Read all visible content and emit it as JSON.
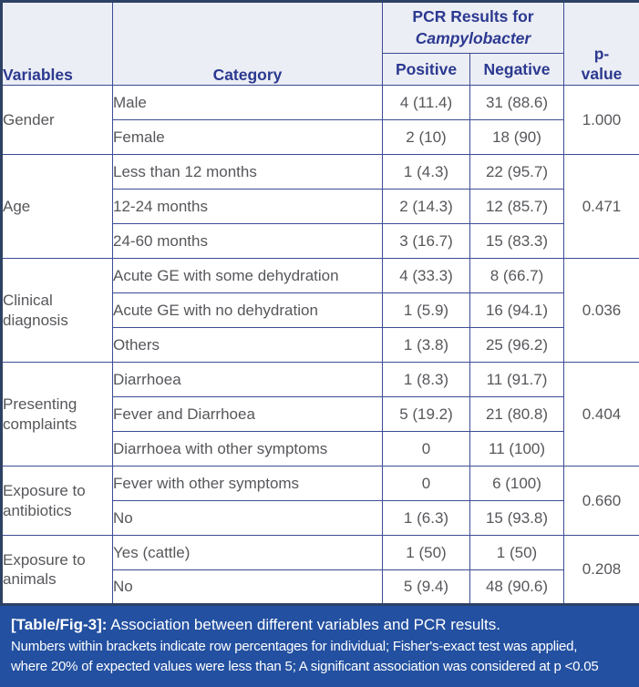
{
  "table": {
    "header": {
      "variables": "Variables",
      "category": "Category",
      "pcr_group_line1": "PCR Results for",
      "pcr_group_line2": "Campylobacter",
      "positive": "Positive",
      "negative": "Negative",
      "p_value_line1": "p-",
      "p_value_line2": "value"
    },
    "groups": [
      {
        "variable": "Gender",
        "p_value": "1.000",
        "rows": [
          {
            "category": "Male",
            "positive": "4 (11.4)",
            "negative": "31 (88.6)"
          },
          {
            "category": "Female",
            "positive": "2 (10)",
            "negative": "18 (90)"
          }
        ]
      },
      {
        "variable": "Age",
        "p_value": "0.471",
        "rows": [
          {
            "category": "Less than 12 months",
            "positive": "1 (4.3)",
            "negative": "22 (95.7)"
          },
          {
            "category": "12-24 months",
            "positive": "2 (14.3)",
            "negative": "12 (85.7)"
          },
          {
            "category": "24-60 months",
            "positive": "3 (16.7)",
            "negative": "15 (83.3)"
          }
        ]
      },
      {
        "variable": "Clinical diagnosis",
        "p_value": "0.036",
        "rows": [
          {
            "category": "Acute GE with some dehydration",
            "positive": "4 (33.3)",
            "negative": "8 (66.7)"
          },
          {
            "category": "Acute GE with no dehydration",
            "positive": "1 (5.9)",
            "negative": "16 (94.1)"
          },
          {
            "category": "Others",
            "positive": "1 (3.8)",
            "negative": "25 (96.2)"
          }
        ]
      },
      {
        "variable": "Presenting complaints",
        "p_value": "0.404",
        "rows": [
          {
            "category": "Diarrhoea",
            "positive": "1 (8.3)",
            "negative": "11 (91.7)"
          },
          {
            "category": "Fever and Diarrhoea",
            "positive": "5 (19.2)",
            "negative": "21 (80.8)"
          },
          {
            "category": "Diarrhoea with other symptoms",
            "positive": "0",
            "negative": "11 (100)"
          }
        ]
      },
      {
        "variable": "Exposure to antibiotics",
        "p_value": "0.660",
        "rows": [
          {
            "category": "Fever with other symptoms",
            "positive": "0",
            "negative": "6 (100)"
          },
          {
            "category": "No",
            "positive": "1 (6.3)",
            "negative": "15 (93.8)"
          }
        ]
      },
      {
        "variable": "Exposure to animals",
        "p_value": "0.208",
        "rows": [
          {
            "category": "Yes (cattle)",
            "positive": "1 (50)",
            "negative": "1 (50)"
          },
          {
            "category": "No",
            "positive": "5 (9.4)",
            "negative": "48 (90.6)"
          }
        ]
      }
    ]
  },
  "caption": {
    "label": "[Table/Fig-3]:",
    "title": "Association between different variables and PCR results.",
    "notes": [
      "Numbers within brackets indicate row percentages for individual; Fisher's-exact test was applied,",
      "where 20% of expected values were less than 5; A significant association was considered at p <0.05"
    ]
  },
  "colors": {
    "header_background": "#eceef5",
    "header_text": "#2b3990",
    "grid_border": "#3c4c94",
    "outer_border": "#2d4164",
    "body_text": "#56575b",
    "caption_background": "#2350a0",
    "caption_text": "#ffffff"
  }
}
